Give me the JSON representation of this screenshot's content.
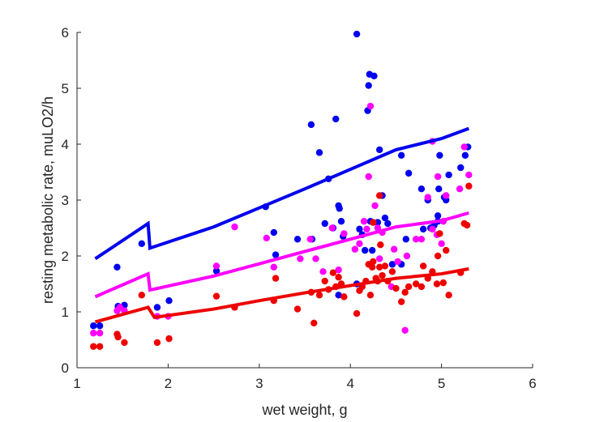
{
  "chart_data": {
    "type": "scatter",
    "xlabel": "wet weight, g",
    "ylabel": "resting metabolic rate, muLO2/h",
    "xlim": [
      1,
      6
    ],
    "ylim": [
      0,
      6
    ],
    "xticks": [
      1,
      2,
      3,
      4,
      5,
      6
    ],
    "yticks": [
      0,
      1,
      2,
      3,
      4,
      5,
      6
    ],
    "grid": false,
    "series": [
      {
        "color": "#0000ee",
        "points": [
          [
            1.18,
            0.75
          ],
          [
            1.25,
            0.75
          ],
          [
            1.44,
            1.8
          ],
          [
            1.45,
            1.1
          ],
          [
            1.52,
            1.12
          ],
          [
            1.71,
            2.22
          ],
          [
            1.88,
            1.08
          ],
          [
            2.01,
            1.2
          ],
          [
            2.53,
            1.73
          ],
          [
            3.07,
            2.88
          ],
          [
            3.16,
            2.42
          ],
          [
            3.18,
            2.02
          ],
          [
            3.42,
            2.3
          ],
          [
            3.57,
            4.35
          ],
          [
            3.58,
            2.3
          ],
          [
            3.66,
            3.85
          ],
          [
            3.72,
            2.58
          ],
          [
            3.76,
            3.38
          ],
          [
            3.81,
            2.5
          ],
          [
            3.84,
            4.45
          ],
          [
            3.87,
            2.9
          ],
          [
            3.88,
            2.85
          ],
          [
            3.9,
            2.62
          ],
          [
            3.92,
            2.35
          ],
          [
            3.87,
            1.3
          ],
          [
            4.07,
            5.97
          ],
          [
            4.1,
            2.48
          ],
          [
            4.13,
            2.38
          ],
          [
            4.16,
            2.1
          ],
          [
            4.19,
            4.6
          ],
          [
            4.2,
            5.05
          ],
          [
            4.21,
            5.25
          ],
          [
            4.26,
            5.22
          ],
          [
            4.22,
            2.62
          ],
          [
            4.24,
            2.1
          ],
          [
            4.3,
            2.6
          ],
          [
            4.32,
            3.9
          ],
          [
            4.35,
            3.08
          ],
          [
            4.38,
            2.68
          ],
          [
            4.41,
            2.58
          ],
          [
            4.46,
            1.85
          ],
          [
            4.56,
            3.8
          ],
          [
            4.61,
            2.3
          ],
          [
            4.64,
            3.48
          ],
          [
            4.56,
            1.85
          ],
          [
            4.78,
            3.2
          ],
          [
            4.8,
            2.48
          ],
          [
            4.85,
            3.0
          ],
          [
            4.88,
            2.5
          ],
          [
            4.92,
            2.55
          ],
          [
            4.96,
            2.62
          ],
          [
            4.96,
            2.72
          ],
          [
            4.97,
            3.2
          ],
          [
            4.98,
            3.8
          ],
          [
            5.03,
            3.05
          ],
          [
            5.05,
            3.0
          ],
          [
            5.08,
            3.45
          ],
          [
            5.21,
            3.58
          ],
          [
            5.26,
            3.8
          ],
          [
            5.29,
            3.95
          ],
          [
            4.07,
            1.5
          ]
        ],
        "fit": [
          [
            1.2,
            1.95
          ],
          [
            1.78,
            2.58
          ],
          [
            1.8,
            2.14
          ],
          [
            2.5,
            2.52
          ],
          [
            3.0,
            2.86
          ],
          [
            3.5,
            3.2
          ],
          [
            4.0,
            3.55
          ],
          [
            4.5,
            3.9
          ],
          [
            5.0,
            4.1
          ],
          [
            5.3,
            4.28
          ]
        ]
      },
      {
        "color": "#ff00ff",
        "points": [
          [
            1.18,
            0.62
          ],
          [
            1.25,
            0.62
          ],
          [
            1.44,
            1.02
          ],
          [
            1.47,
            1.08
          ],
          [
            1.52,
            1.02
          ],
          [
            1.88,
            0.92
          ],
          [
            2.0,
            0.92
          ],
          [
            2.53,
            1.82
          ],
          [
            2.73,
            2.52
          ],
          [
            3.08,
            2.32
          ],
          [
            3.16,
            1.8
          ],
          [
            3.45,
            1.95
          ],
          [
            3.56,
            2.3
          ],
          [
            3.62,
            1.95
          ],
          [
            3.7,
            1.72
          ],
          [
            3.8,
            2.5
          ],
          [
            3.87,
            1.75
          ],
          [
            3.93,
            2.4
          ],
          [
            4.05,
            2.12
          ],
          [
            4.1,
            2.22
          ],
          [
            4.15,
            2.62
          ],
          [
            4.18,
            2.48
          ],
          [
            4.2,
            3.42
          ],
          [
            4.22,
            4.68
          ],
          [
            4.25,
            2.6
          ],
          [
            4.27,
            2.9
          ],
          [
            4.3,
            2.5
          ],
          [
            4.32,
            1.95
          ],
          [
            4.35,
            2.42
          ],
          [
            4.45,
            1.45
          ],
          [
            4.48,
            2.12
          ],
          [
            4.52,
            1.9
          ],
          [
            4.6,
            0.67
          ],
          [
            4.62,
            2.0
          ],
          [
            4.72,
            2.3
          ],
          [
            4.78,
            2.3
          ],
          [
            4.85,
            3.05
          ],
          [
            4.9,
            2.48
          ],
          [
            4.95,
            2.38
          ],
          [
            4.96,
            3.42
          ],
          [
            5.0,
            2.22
          ],
          [
            5.02,
            2.62
          ],
          [
            5.05,
            3.08
          ],
          [
            5.2,
            3.2
          ],
          [
            5.25,
            3.95
          ],
          [
            5.3,
            3.45
          ],
          [
            4.9,
            4.05
          ]
        ],
        "fit": [
          [
            1.2,
            1.27
          ],
          [
            1.78,
            1.68
          ],
          [
            1.8,
            1.39
          ],
          [
            2.5,
            1.64
          ],
          [
            3.0,
            1.86
          ],
          [
            3.5,
            2.08
          ],
          [
            4.0,
            2.3
          ],
          [
            4.5,
            2.52
          ],
          [
            5.0,
            2.63
          ],
          [
            5.3,
            2.77
          ]
        ]
      },
      {
        "color": "#ee0000",
        "points": [
          [
            1.18,
            0.38
          ],
          [
            1.25,
            0.38
          ],
          [
            1.44,
            0.6
          ],
          [
            1.45,
            0.55
          ],
          [
            1.52,
            0.45
          ],
          [
            1.71,
            1.3
          ],
          [
            1.88,
            0.45
          ],
          [
            2.01,
            0.52
          ],
          [
            2.53,
            1.28
          ],
          [
            2.73,
            1.08
          ],
          [
            3.16,
            1.2
          ],
          [
            3.18,
            1.6
          ],
          [
            3.42,
            1.05
          ],
          [
            3.57,
            1.35
          ],
          [
            3.6,
            0.8
          ],
          [
            3.66,
            1.3
          ],
          [
            3.72,
            1.55
          ],
          [
            3.76,
            1.4
          ],
          [
            3.81,
            1.7
          ],
          [
            3.84,
            1.45
          ],
          [
            3.87,
            1.62
          ],
          [
            3.9,
            1.5
          ],
          [
            3.93,
            1.27
          ],
          [
            4.07,
            0.97
          ],
          [
            4.1,
            1.38
          ],
          [
            4.13,
            1.45
          ],
          [
            4.17,
            1.55
          ],
          [
            4.2,
            1.85
          ],
          [
            4.22,
            1.3
          ],
          [
            4.24,
            1.8
          ],
          [
            4.25,
            2.6
          ],
          [
            4.28,
            1.6
          ],
          [
            4.3,
            1.55
          ],
          [
            4.32,
            1.8
          ],
          [
            4.35,
            1.65
          ],
          [
            4.38,
            1.82
          ],
          [
            4.41,
            1.55
          ],
          [
            4.46,
            1.72
          ],
          [
            4.5,
            1.42
          ],
          [
            4.56,
            1.18
          ],
          [
            4.6,
            1.35
          ],
          [
            4.64,
            1.45
          ],
          [
            4.72,
            1.5
          ],
          [
            4.78,
            1.45
          ],
          [
            4.8,
            1.82
          ],
          [
            4.85,
            1.6
          ],
          [
            4.9,
            1.72
          ],
          [
            4.95,
            1.5
          ],
          [
            4.96,
            2.0
          ],
          [
            4.98,
            2.4
          ],
          [
            5.02,
            1.52
          ],
          [
            5.05,
            2.1
          ],
          [
            5.08,
            1.3
          ],
          [
            5.21,
            1.7
          ],
          [
            5.25,
            2.58
          ],
          [
            5.28,
            2.55
          ],
          [
            5.3,
            3.25
          ],
          [
            4.32,
            3.08
          ],
          [
            4.33,
            2.2
          ],
          [
            4.25,
            1.9
          ]
        ],
        "fit": [
          [
            1.2,
            0.82
          ],
          [
            1.78,
            1.08
          ],
          [
            1.85,
            0.9
          ],
          [
            2.5,
            1.05
          ],
          [
            3.0,
            1.2
          ],
          [
            3.5,
            1.34
          ],
          [
            4.0,
            1.47
          ],
          [
            4.5,
            1.6
          ],
          [
            5.0,
            1.68
          ],
          [
            5.3,
            1.77
          ]
        ]
      }
    ]
  }
}
